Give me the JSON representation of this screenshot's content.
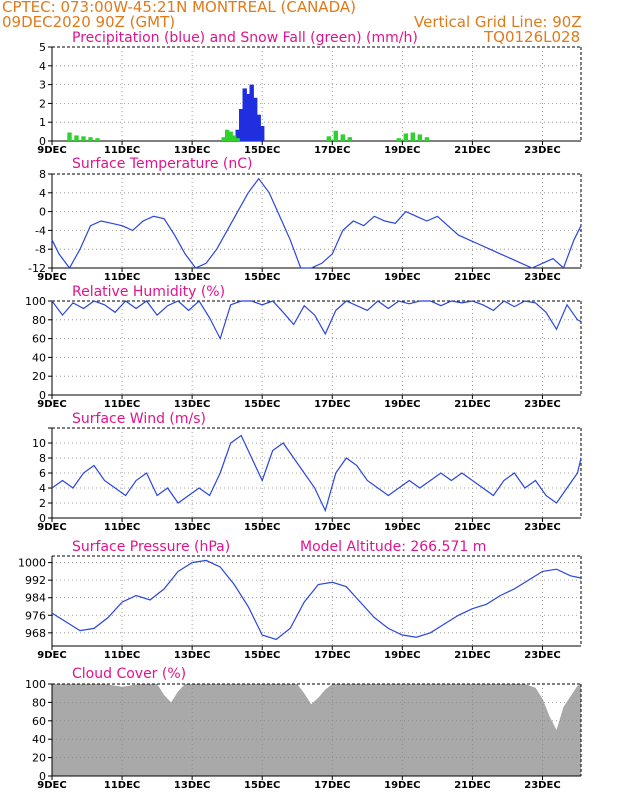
{
  "header": {
    "line1": "CPTEC:   073:00W-45:21N   MONTREAL (CANADA)",
    "line2_left": "09DEC2020 90Z (GMT)",
    "line2_right": "Vertical Grid Line: 90Z",
    "line3_right": "TQ0126L028"
  },
  "x_labels": [
    "9DEC",
    "11DEC",
    "13DEC",
    "15DEC",
    "17DEC",
    "19DEC",
    "21DEC",
    "23DEC"
  ],
  "x_label_days": [
    9,
    11,
    13,
    15,
    17,
    19,
    21,
    23
  ],
  "x_range": [
    9,
    24.1
  ],
  "chart_data": [
    {
      "type": "bar",
      "id": "precip",
      "title": "Precipitation (blue) and Snow Fall (green) (mm/h)",
      "ylim": [
        0,
        5
      ],
      "yticks": [
        0,
        1,
        2,
        3,
        4,
        5
      ],
      "ytick_labels": [
        "0",
        "1",
        "2",
        "3",
        "4",
        "5"
      ],
      "series": [
        {
          "name": "Precipitation",
          "color": "#1f2fe0",
          "x": [
            14.3,
            14.4,
            14.5,
            14.6,
            14.7,
            14.8,
            14.9,
            15.0
          ],
          "values": [
            0.6,
            1.7,
            2.8,
            2.5,
            3.0,
            2.3,
            1.4,
            0.8
          ]
        },
        {
          "name": "Snow Fall",
          "color": "#2ed12e",
          "x": [
            9.5,
            9.7,
            9.9,
            10.1,
            10.3,
            13.9,
            14.0,
            14.1,
            14.2,
            14.3,
            16.9,
            17.1,
            17.3,
            17.5,
            18.9,
            19.1,
            19.3,
            19.5,
            19.7
          ],
          "values": [
            0.45,
            0.3,
            0.25,
            0.2,
            0.15,
            0.2,
            0.6,
            0.5,
            0.3,
            0.15,
            0.25,
            0.55,
            0.35,
            0.2,
            0.15,
            0.4,
            0.45,
            0.35,
            0.2
          ]
        }
      ]
    },
    {
      "type": "line",
      "id": "temp",
      "title": "Surface Temperature (nC)",
      "ylim": [
        -12,
        8
      ],
      "yticks": [
        -12,
        -8,
        -4,
        0,
        4,
        8
      ],
      "ytick_labels": [
        "-12",
        "-8",
        "-4",
        "0",
        "4",
        "8"
      ],
      "series": [
        {
          "color": "#2b45e0",
          "x": [
            9.0,
            9.2,
            9.5,
            9.8,
            10.1,
            10.4,
            10.7,
            11.0,
            11.3,
            11.6,
            11.9,
            12.2,
            12.5,
            12.8,
            13.1,
            13.4,
            13.7,
            14.0,
            14.3,
            14.6,
            14.9,
            15.2,
            15.5,
            15.8,
            16.1,
            16.4,
            16.7,
            17.0,
            17.3,
            17.6,
            17.9,
            18.2,
            18.5,
            18.8,
            19.1,
            19.4,
            19.7,
            20.0,
            20.3,
            20.6,
            20.9,
            21.2,
            21.5,
            21.8,
            22.1,
            22.4,
            22.7,
            23.0,
            23.3,
            23.6,
            23.9,
            24.1
          ],
          "values": [
            -6,
            -9,
            -12,
            -8,
            -3,
            -2,
            -2.5,
            -3,
            -4,
            -2,
            -1,
            -1.5,
            -5,
            -9,
            -12,
            -11,
            -8,
            -4,
            0,
            4,
            7,
            4,
            -1,
            -6,
            -12,
            -12,
            -11,
            -9,
            -4,
            -2,
            -3,
            -1,
            -2,
            -2.5,
            0,
            -1,
            -2,
            -1,
            -3,
            -5,
            -6,
            -7,
            -8,
            -9,
            -10,
            -11,
            -12,
            -11,
            -10,
            -12,
            -6,
            -3
          ]
        }
      ]
    },
    {
      "type": "line",
      "id": "rh",
      "title": "Relative Humidity (%)",
      "ylim": [
        0,
        100
      ],
      "yticks": [
        0,
        20,
        40,
        60,
        80,
        100
      ],
      "ytick_labels": [
        "0",
        "20",
        "40",
        "60",
        "80",
        "100"
      ],
      "series": [
        {
          "color": "#2b45e0",
          "x": [
            9.0,
            9.3,
            9.6,
            9.9,
            10.2,
            10.5,
            10.8,
            11.1,
            11.4,
            11.7,
            12.0,
            12.3,
            12.6,
            12.9,
            13.2,
            13.5,
            13.8,
            14.1,
            14.4,
            14.7,
            15.0,
            15.3,
            15.6,
            15.9,
            16.2,
            16.5,
            16.8,
            17.1,
            17.4,
            17.7,
            18.0,
            18.3,
            18.6,
            18.9,
            19.2,
            19.5,
            19.8,
            20.1,
            20.4,
            20.7,
            21.0,
            21.3,
            21.6,
            21.9,
            22.2,
            22.5,
            22.8,
            23.1,
            23.4,
            23.7,
            24.0,
            24.1
          ],
          "values": [
            100,
            85,
            98,
            92,
            100,
            96,
            88,
            100,
            92,
            100,
            85,
            95,
            100,
            90,
            100,
            82,
            60,
            96,
            100,
            100,
            96,
            100,
            88,
            75,
            95,
            85,
            65,
            90,
            100,
            95,
            90,
            100,
            92,
            100,
            97,
            100,
            100,
            95,
            100,
            98,
            100,
            96,
            90,
            100,
            94,
            100,
            98,
            88,
            70,
            96,
            80,
            78
          ]
        }
      ]
    },
    {
      "type": "line",
      "id": "wind",
      "title": "Surface Wind (m/s)",
      "ylim": [
        0,
        12
      ],
      "yticks": [
        0,
        2,
        4,
        6,
        8,
        10,
        12
      ],
      "ytick_labels": [
        "0",
        "2",
        "4",
        "6",
        "8",
        "10",
        ""
      ],
      "series": [
        {
          "color": "#2b45e0",
          "x": [
            9.0,
            9.3,
            9.6,
            9.9,
            10.2,
            10.5,
            10.8,
            11.1,
            11.4,
            11.7,
            12.0,
            12.3,
            12.6,
            12.9,
            13.2,
            13.5,
            13.8,
            14.1,
            14.4,
            14.7,
            15.0,
            15.3,
            15.6,
            15.9,
            16.2,
            16.5,
            16.8,
            17.1,
            17.4,
            17.7,
            18.0,
            18.3,
            18.6,
            18.9,
            19.2,
            19.5,
            19.8,
            20.1,
            20.4,
            20.7,
            21.0,
            21.3,
            21.6,
            21.9,
            22.2,
            22.5,
            22.8,
            23.1,
            23.4,
            23.7,
            24.0,
            24.1
          ],
          "values": [
            4,
            5,
            4,
            6,
            7,
            5,
            4,
            3,
            5,
            6,
            3,
            4,
            2,
            3,
            4,
            3,
            6,
            10,
            11,
            8,
            5,
            9,
            10,
            8,
            6,
            4,
            1,
            6,
            8,
            7,
            5,
            4,
            3,
            4,
            5,
            4,
            5,
            6,
            5,
            6,
            5,
            4,
            3,
            5,
            6,
            4,
            5,
            3,
            2,
            4,
            6,
            8
          ]
        }
      ]
    },
    {
      "type": "line",
      "id": "pressure",
      "title": "Surface Pressure (hPa)",
      "ylim": [
        962,
        1003
      ],
      "yticks": [
        968,
        976,
        984,
        992,
        1000
      ],
      "ytick_labels": [
        "968",
        "976",
        "984",
        "992",
        "1000"
      ],
      "series": [
        {
          "color": "#2b45e0",
          "x": [
            9.0,
            9.4,
            9.8,
            10.2,
            10.6,
            11.0,
            11.4,
            11.8,
            12.2,
            12.6,
            13.0,
            13.4,
            13.8,
            14.2,
            14.6,
            15.0,
            15.4,
            15.8,
            16.2,
            16.6,
            17.0,
            17.4,
            17.8,
            18.2,
            18.6,
            19.0,
            19.4,
            19.8,
            20.2,
            20.6,
            21.0,
            21.4,
            21.8,
            22.2,
            22.6,
            23.0,
            23.4,
            23.8,
            24.1
          ],
          "values": [
            977,
            973,
            969,
            970,
            975,
            982,
            985,
            983,
            988,
            996,
            1000,
            1001,
            998,
            990,
            980,
            967,
            965,
            970,
            982,
            990,
            991,
            989,
            982,
            975,
            970,
            967,
            966,
            968,
            972,
            976,
            979,
            981,
            985,
            988,
            992,
            996,
            997,
            994,
            993
          ]
        }
      ]
    },
    {
      "type": "area",
      "id": "cloud",
      "title": "Cloud Cover (%)",
      "ylim": [
        0,
        100
      ],
      "yticks": [
        0,
        20,
        40,
        60,
        80,
        100
      ],
      "ytick_labels": [
        "0",
        "20",
        "40",
        "60",
        "80",
        "100"
      ],
      "series": [
        {
          "color": "#a9a9a9",
          "x": [
            9.0,
            9.5,
            10.0,
            10.5,
            11.0,
            11.5,
            12.0,
            12.2,
            12.4,
            12.6,
            12.8,
            13.0,
            13.5,
            14.0,
            14.5,
            15.0,
            15.5,
            16.0,
            16.2,
            16.4,
            16.6,
            16.8,
            17.0,
            17.5,
            18.0,
            18.5,
            19.0,
            19.5,
            20.0,
            20.5,
            21.0,
            21.5,
            22.0,
            22.5,
            22.8,
            23.0,
            23.2,
            23.4,
            23.6,
            24.0,
            24.1
          ],
          "values": [
            100,
            100,
            100,
            100,
            97,
            100,
            100,
            88,
            80,
            92,
            100,
            100,
            100,
            100,
            100,
            100,
            100,
            100,
            90,
            78,
            85,
            94,
            100,
            100,
            100,
            100,
            100,
            100,
            100,
            100,
            100,
            100,
            100,
            100,
            96,
            84,
            65,
            50,
            75,
            98,
            100
          ]
        }
      ]
    }
  ],
  "annotations": {
    "model_altitude": "Model Altitude: 266.571 m"
  }
}
